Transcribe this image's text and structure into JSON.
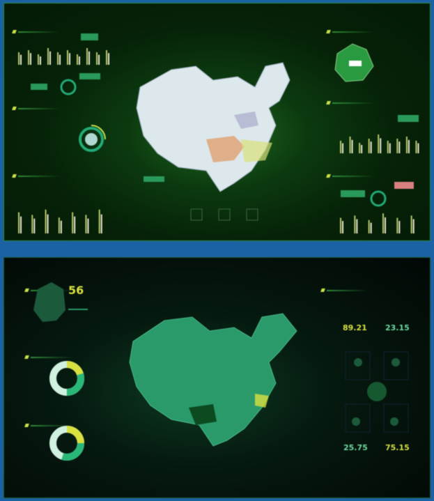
{
  "top_dashboard": {
    "title": "",
    "colors": {
      "background": "#062208",
      "accent": "#c8e04a",
      "map": "#dde8ec",
      "bar": "#b8c86a"
    },
    "bar_charts": [
      {
        "values": [
          0.6,
          0.7,
          0.5,
          0.8,
          0.6,
          0.7,
          0.5,
          0.8,
          0.6,
          0.7
        ]
      },
      {
        "values": [
          0.8,
          0.7,
          0.9,
          0.6,
          0.8,
          0.7,
          0.9
        ]
      },
      {
        "values": [
          0.6,
          0.8,
          0.5,
          0.7,
          0.9,
          0.6,
          0.7,
          0.8,
          0.6
        ]
      },
      {
        "values": [
          0.7,
          0.8,
          0.6,
          0.9,
          0.7,
          0.8
        ]
      }
    ]
  },
  "bottom_dashboard": {
    "title": "",
    "colors": {
      "background": "#020805",
      "accent": "#d8e040",
      "map": "#2a9a6a"
    },
    "stat_main": "56",
    "stats": [
      {
        "value": "89.21",
        "color": "#d8e040"
      },
      {
        "value": "23.15",
        "color": "#6fd8a0"
      },
      {
        "value": "25.75",
        "color": "#6fd8a0"
      },
      {
        "value": "75.15",
        "color": "#d8e040"
      }
    ],
    "donuts": [
      {
        "fraction_yellow": 0.2
      },
      {
        "fraction_yellow": 0.25
      }
    ]
  }
}
